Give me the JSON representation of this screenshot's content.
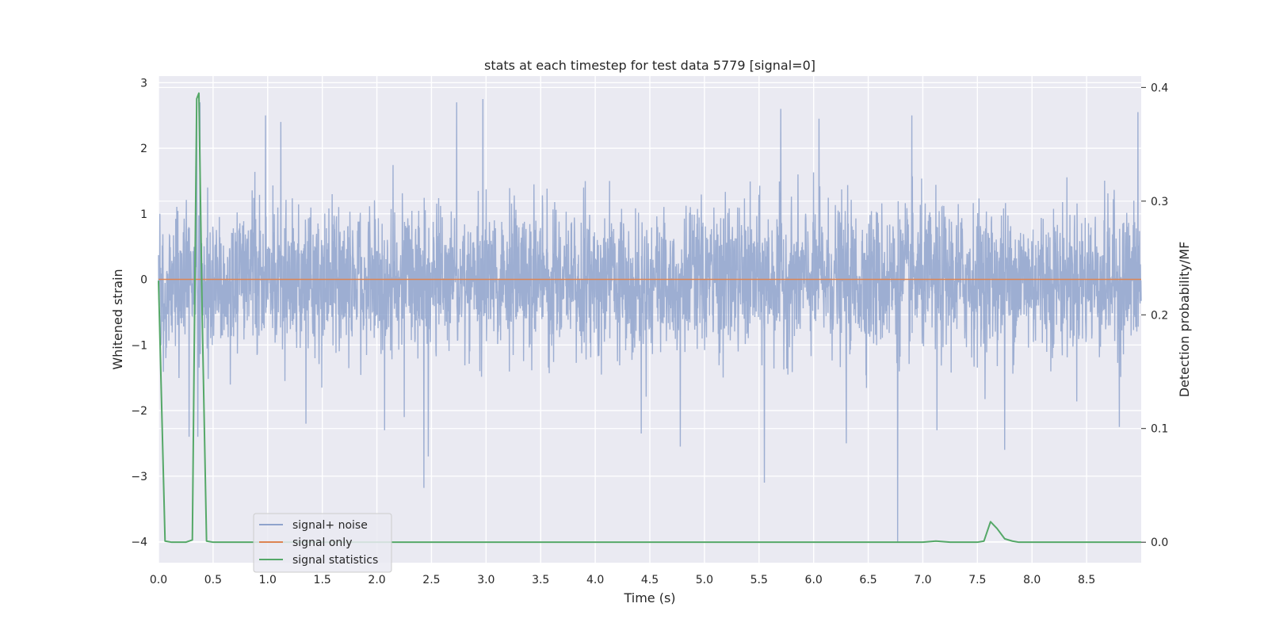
{
  "chart_data": {
    "type": "line",
    "title": "stats at each timestep for test data 5779 [signal=0]",
    "xlabel": "Time (s)",
    "ylabel": "Whitened strain",
    "y2label": "Detection probability/MF",
    "xlim": [
      0.0,
      9.0
    ],
    "ylim": [
      -4.32,
      3.1
    ],
    "y2lim": [
      -0.018,
      0.41
    ],
    "xticks": [
      "0.0",
      "0.5",
      "1.0",
      "1.5",
      "2.0",
      "2.5",
      "3.0",
      "3.5",
      "4.0",
      "4.5",
      "5.0",
      "5.5",
      "6.0",
      "6.5",
      "7.0",
      "7.5",
      "8.0",
      "8.5"
    ],
    "yticks": [
      "3",
      "2",
      "1",
      "0",
      "−1",
      "−2",
      "−3",
      "−4"
    ],
    "y2ticks": [
      "0.4",
      "0.3",
      "0.2",
      "0.1",
      "0.0"
    ],
    "grid": true,
    "legend_position": "lower-left",
    "series": [
      {
        "name": "signal+ noise",
        "axis": "left",
        "color": "#8fa3cc",
        "description_stats": {
          "noise_sigma": 0.55,
          "duration_s": 9.0
        },
        "spikes": [
          [
            0.35,
            2.75
          ],
          [
            0.38,
            2.7
          ],
          [
            0.28,
            -2.4
          ],
          [
            0.36,
            -2.4
          ],
          [
            0.45,
            1.4
          ],
          [
            0.98,
            2.5
          ],
          [
            1.12,
            2.4
          ],
          [
            1.35,
            -2.2
          ],
          [
            2.07,
            -2.3
          ],
          [
            2.25,
            -2.1
          ],
          [
            2.43,
            -3.18
          ],
          [
            2.47,
            -2.7
          ],
          [
            2.73,
            2.7
          ],
          [
            2.97,
            2.75
          ],
          [
            4.13,
            1.5
          ],
          [
            4.42,
            -2.35
          ],
          [
            4.78,
            -2.55
          ],
          [
            5.55,
            -3.1
          ],
          [
            5.7,
            2.6
          ],
          [
            6.05,
            2.45
          ],
          [
            6.3,
            -2.5
          ],
          [
            6.77,
            -4.0
          ],
          [
            6.9,
            2.5
          ],
          [
            7.13,
            -2.3
          ],
          [
            7.75,
            -2.6
          ],
          [
            8.8,
            -2.25
          ],
          [
            8.97,
            2.55
          ]
        ]
      },
      {
        "name": "signal only",
        "axis": "left",
        "color": "#dd8452",
        "x": [
          0.0,
          9.0
        ],
        "y": [
          0.0,
          0.0
        ]
      },
      {
        "name": "signal statistics",
        "axis": "right",
        "color": "#55a868",
        "x": [
          0.0,
          0.06,
          0.12,
          0.19,
          0.25,
          0.31,
          0.35,
          0.37,
          0.4,
          0.44,
          0.5,
          1.0,
          2.0,
          3.0,
          4.0,
          5.0,
          6.0,
          6.5,
          7.0,
          7.12,
          7.25,
          7.5,
          7.56,
          7.62,
          7.68,
          7.75,
          7.82,
          7.88,
          8.0,
          8.5,
          9.0
        ],
        "y": [
          0.23,
          0.001,
          0.0,
          0.0,
          0.0,
          0.002,
          0.39,
          0.395,
          0.2,
          0.001,
          0.0,
          0.0,
          0.0,
          0.0,
          0.0,
          0.0,
          0.0,
          0.0,
          0.0,
          0.001,
          0.0,
          0.0,
          0.001,
          0.018,
          0.012,
          0.003,
          0.001,
          0.0,
          0.0,
          0.0,
          0.0
        ]
      }
    ]
  }
}
